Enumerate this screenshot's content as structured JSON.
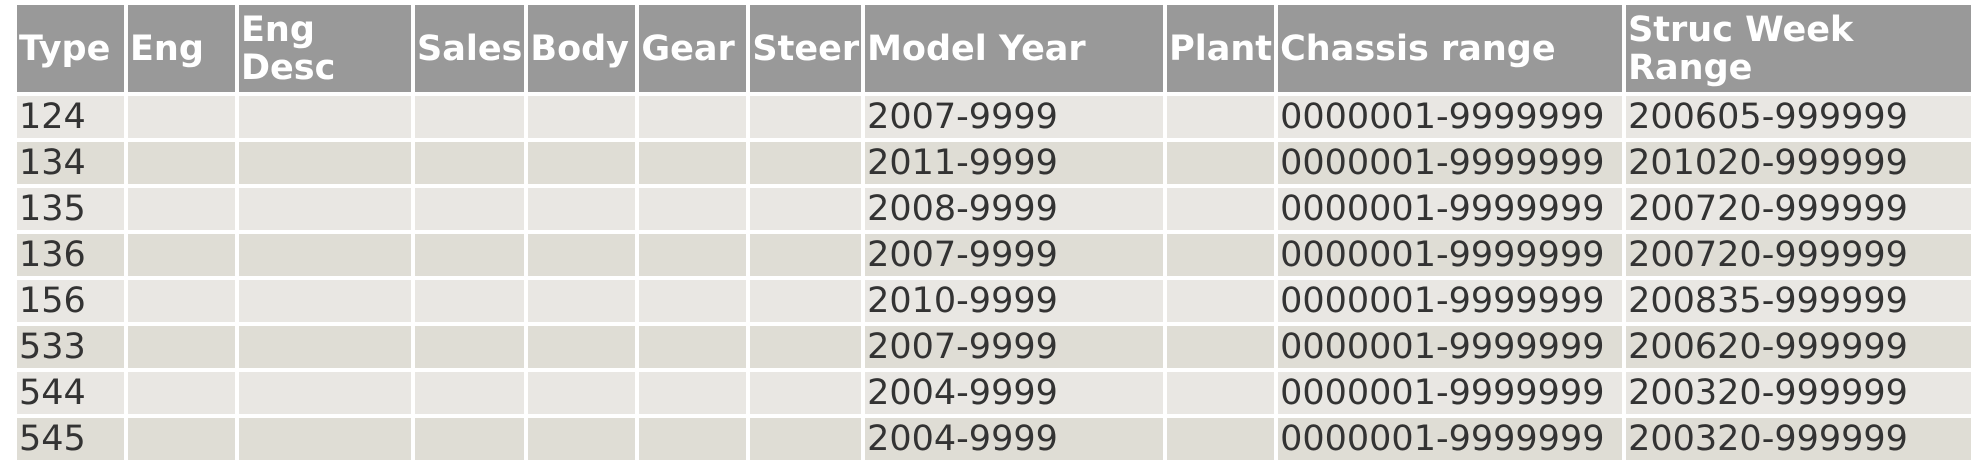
{
  "table": {
    "headers": [
      "Type",
      "Eng",
      "Eng Desc",
      "Sales",
      "Body",
      "Gear",
      "Steer",
      "Model Year",
      "Plant",
      "Chassis range",
      "Struc Week Range"
    ],
    "rows": [
      [
        "124",
        "",
        "",
        "",
        "",
        "",
        "",
        "2007-9999",
        "",
        "0000001-9999999",
        "200605-999999"
      ],
      [
        "134",
        "",
        "",
        "",
        "",
        "",
        "",
        "2011-9999",
        "",
        "0000001-9999999",
        "201020-999999"
      ],
      [
        "135",
        "",
        "",
        "",
        "",
        "",
        "",
        "2008-9999",
        "",
        "0000001-9999999",
        "200720-999999"
      ],
      [
        "136",
        "",
        "",
        "",
        "",
        "",
        "",
        "2007-9999",
        "",
        "0000001-9999999",
        "200720-999999"
      ],
      [
        "156",
        "",
        "",
        "",
        "",
        "",
        "",
        "2010-9999",
        "",
        "0000001-9999999",
        "200835-999999"
      ],
      [
        "533",
        "",
        "",
        "",
        "",
        "",
        "",
        "2007-9999",
        "",
        "0000001-9999999",
        "200620-999999"
      ],
      [
        "544",
        "",
        "",
        "",
        "",
        "",
        "",
        "2004-9999",
        "",
        "0000001-9999999",
        "200320-999999"
      ],
      [
        "545",
        "",
        "",
        "",
        "",
        "",
        "",
        "2004-9999",
        "",
        "0000001-9999999",
        "200320-999999"
      ]
    ]
  }
}
